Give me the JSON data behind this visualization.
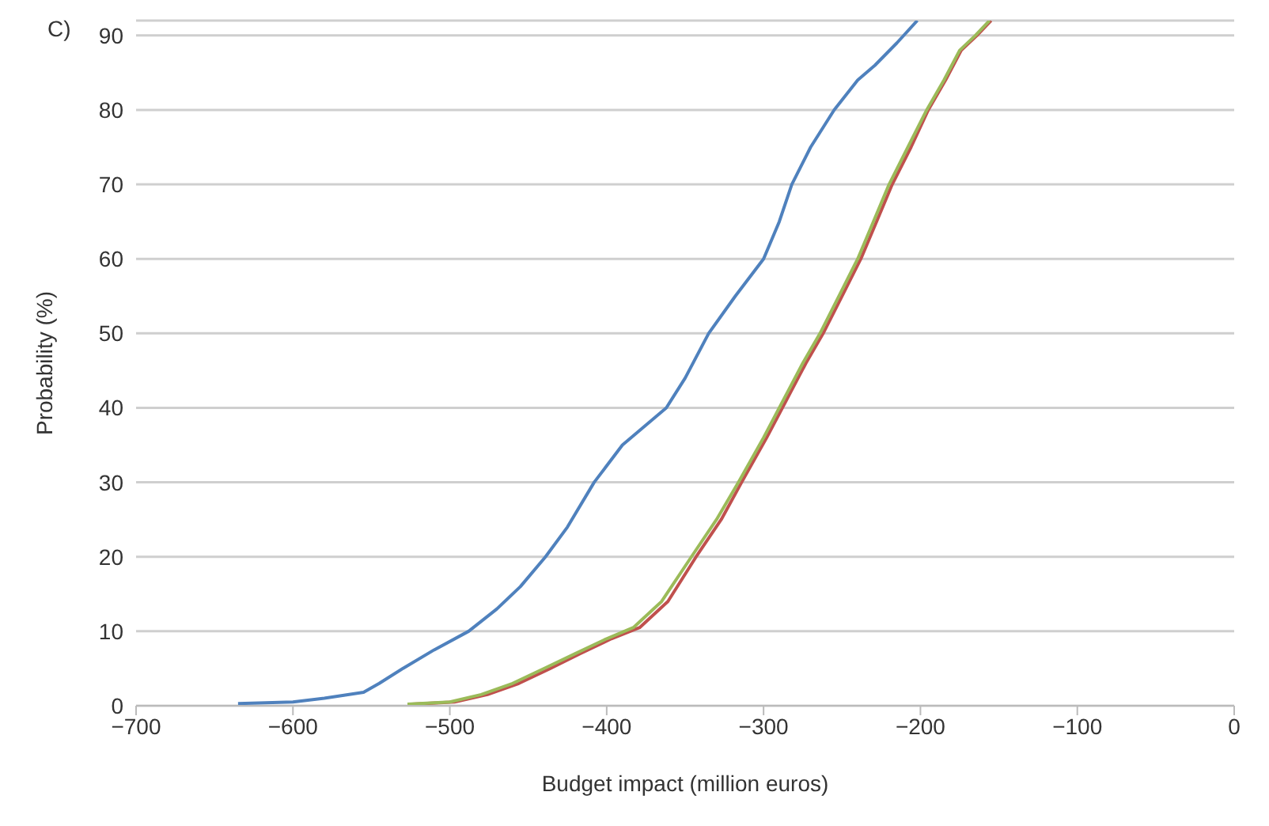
{
  "chart_data": {
    "type": "line",
    "xlabel": "Budget impact (million euros)",
    "ylabel": "Probability (%)",
    "annotations": [
      "C)"
    ],
    "xlim": [
      -700,
      0
    ],
    "xticks": [
      {
        "value": -700,
        "label": "−700"
      },
      {
        "value": -600,
        "label": "−600"
      },
      {
        "value": -500,
        "label": "−500"
      },
      {
        "value": -400,
        "label": "−400"
      },
      {
        "value": -300,
        "label": "−300"
      },
      {
        "value": -200,
        "label": "−200"
      },
      {
        "value": -100,
        "label": "−100"
      },
      0
    ],
    "ylim": [
      0,
      92
    ],
    "yticks": [
      0,
      10,
      20,
      30,
      40,
      50,
      60,
      70,
      80,
      90
    ],
    "grid": "y",
    "legend": false,
    "marker": "none",
    "line_style": "solid",
    "series": [
      {
        "color": "#4f81bd",
        "x": [
          -635,
          -600,
          -580,
          -555,
          -545,
          -530,
          -510,
          -488,
          -470,
          -455,
          -439,
          -425,
          -408,
          -390,
          -362,
          -350,
          -335,
          -318,
          -300,
          -290,
          -282,
          -270,
          -255,
          -240,
          -229,
          -215,
          -202
        ],
        "values": [
          0.3,
          0.5,
          1,
          1.8,
          3,
          5,
          7.5,
          10,
          13,
          16,
          20,
          24,
          30,
          35,
          40,
          44,
          50,
          55,
          60,
          65,
          70,
          75,
          80,
          84,
          86,
          89,
          92
        ]
      },
      {
        "color": "#c0504d",
        "x": [
          -524,
          -497,
          -476,
          -456,
          -436,
          -417,
          -397,
          -379,
          -361,
          -343,
          -327,
          -314,
          -298,
          -283,
          -273,
          -262,
          -250,
          -238,
          -228,
          -218,
          -206,
          -195,
          -184,
          -174,
          -164,
          -155
        ],
        "values": [
          0.2,
          0.5,
          1.5,
          3,
          5,
          7,
          9,
          10.5,
          14,
          20,
          25,
          30,
          36,
          42,
          46,
          50,
          55,
          60,
          65,
          70,
          75,
          80,
          84,
          88,
          90,
          92
        ]
      },
      {
        "color": "#9bbb59",
        "x": [
          -527,
          -500,
          -480,
          -460,
          -440,
          -420,
          -400,
          -383,
          -365,
          -346,
          -330,
          -316,
          -300,
          -285,
          -275,
          -264,
          -252,
          -240,
          -230,
          -220,
          -208,
          -196,
          -185,
          -175,
          -165,
          -156
        ],
        "values": [
          0.2,
          0.5,
          1.5,
          3,
          5,
          7,
          9,
          10.5,
          14,
          20,
          25,
          30,
          36,
          42,
          46,
          50,
          55,
          60,
          65,
          70,
          75,
          80,
          84,
          88,
          90,
          92
        ]
      }
    ]
  }
}
